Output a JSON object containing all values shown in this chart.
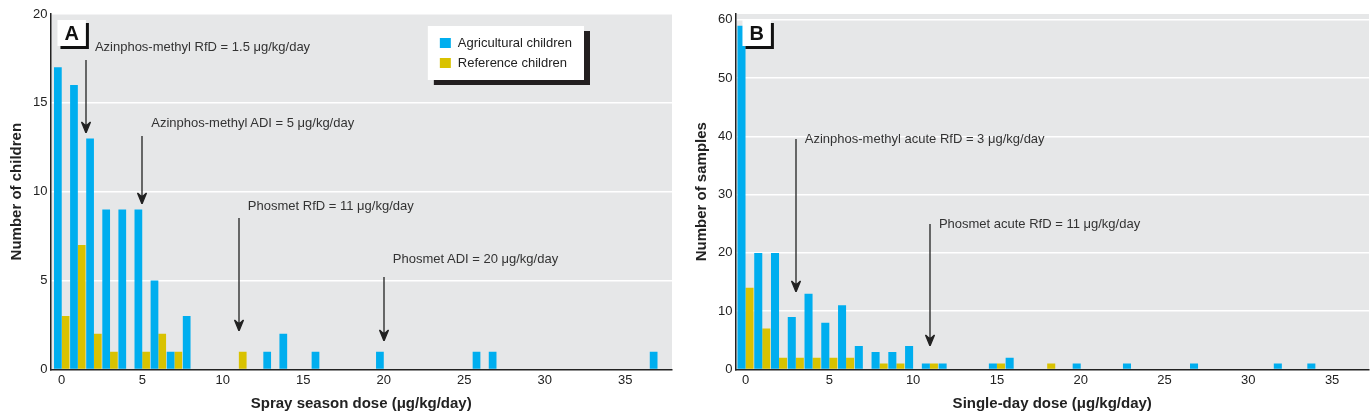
{
  "chart_data": [
    {
      "type": "bar",
      "title": "A",
      "xlabel": "Spray season dose (μg/kg/day)",
      "ylabel": "Number of children",
      "xlim": [
        -0.7,
        37.9
      ],
      "xticks": [
        0,
        5,
        10,
        15,
        20,
        25,
        30,
        35
      ],
      "ylim": [
        0,
        20
      ],
      "yticks": [
        0,
        5,
        10,
        15,
        20
      ],
      "grid": "y",
      "legend": "top right",
      "series": [
        {
          "name": "Agricultural children",
          "color": "#00aeef",
          "x": [
            0,
            1,
            2,
            3,
            4,
            5,
            6,
            7,
            8,
            13,
            14,
            16,
            20,
            26,
            27,
            37
          ],
          "values": [
            17,
            16,
            13,
            9,
            9,
            9,
            5,
            1,
            3,
            1,
            2,
            1,
            1,
            1,
            1,
            1
          ]
        },
        {
          "name": "Reference children",
          "color": "#d9c200",
          "x": [
            0,
            1,
            2,
            3,
            5,
            6,
            7,
            11
          ],
          "values": [
            3,
            7,
            2,
            1,
            1,
            2,
            1,
            1
          ]
        }
      ],
      "ref_lines": [
        {
          "axis": "x",
          "value": 1.5,
          "label": "Azinphos-methyl RfD = 1.5 μg/kg/day"
        },
        {
          "axis": "x",
          "value": 5,
          "label": "Azinphos-methyl ADI = 5 μg/kg/day"
        },
        {
          "axis": "x",
          "value": 11,
          "label": "Phosmet RfD = 11 μg/kg/day"
        },
        {
          "axis": "x",
          "value": 20,
          "label": "Phosmet ADI = 20 μg/kg/day"
        }
      ]
    },
    {
      "type": "bar",
      "title": "B",
      "xlabel": "Single-day dose (μg/kg/day)",
      "ylabel": "Number of samples",
      "xlim": [
        -0.6,
        37.2
      ],
      "xticks": [
        0,
        5,
        10,
        15,
        20,
        25,
        30,
        35
      ],
      "ylim": [
        0,
        61
      ],
      "yticks": [
        0,
        10,
        20,
        30,
        40,
        50,
        60
      ],
      "grid": "y",
      "series": [
        {
          "color": "#00aeef",
          "x": [
            0,
            1,
            2,
            3,
            4,
            5,
            6,
            7,
            8,
            9,
            10,
            11,
            12,
            15,
            16,
            20,
            23,
            27,
            32,
            34
          ],
          "values": [
            59,
            20,
            20,
            9,
            13,
            8,
            11,
            4,
            3,
            3,
            4,
            1,
            1,
            1,
            2,
            1,
            1,
            1,
            1,
            1
          ]
        },
        {
          "color": "#d9c200",
          "x": [
            0,
            1,
            2,
            3,
            4,
            5,
            6,
            8,
            9,
            11,
            15,
            18
          ],
          "values": [
            14,
            7,
            2,
            2,
            2,
            2,
            2,
            1,
            1,
            1,
            1,
            1
          ]
        }
      ],
      "ref_lines": [
        {
          "axis": "x",
          "value": 3,
          "label": "Azinphos-methyl acute RfD = 3 μg/kg/day"
        },
        {
          "axis": "x",
          "value": 11,
          "label": "Phosmet acute RfD = 11 μg/kg/day"
        }
      ]
    }
  ]
}
